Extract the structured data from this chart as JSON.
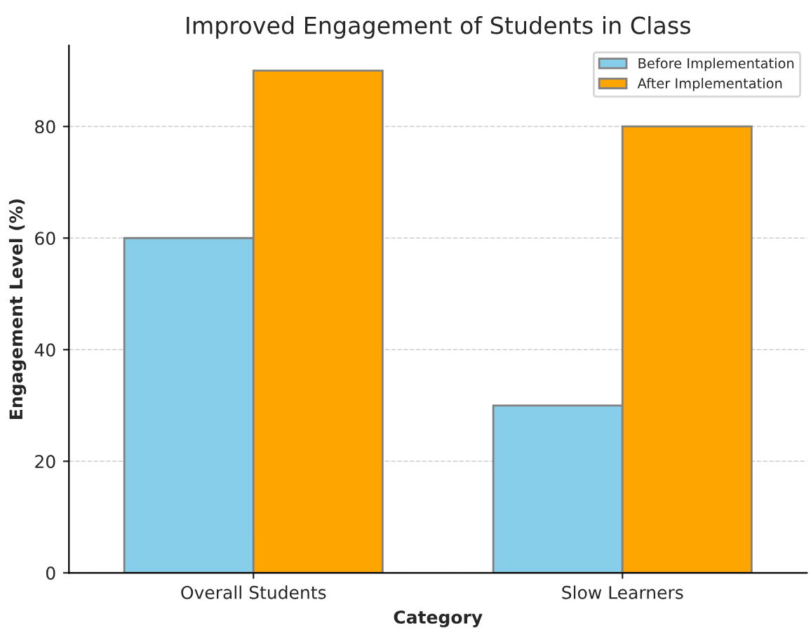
{
  "chart_data": {
    "type": "bar",
    "title": "Improved Engagement of Students in Class",
    "xlabel": "Category",
    "ylabel": "Engagement Level (%)",
    "categories": [
      "Overall Students",
      "Slow Learners"
    ],
    "series": [
      {
        "name": "Before Implementation",
        "color": "#87ceeb",
        "values": [
          60,
          30
        ]
      },
      {
        "name": "After Implementation",
        "color": "#ffa500",
        "values": [
          90,
          80
        ]
      }
    ],
    "ylim": [
      0,
      94.5
    ],
    "yticks": [
      0,
      20,
      40,
      60,
      80
    ],
    "grid": "y",
    "legend": "top right"
  }
}
